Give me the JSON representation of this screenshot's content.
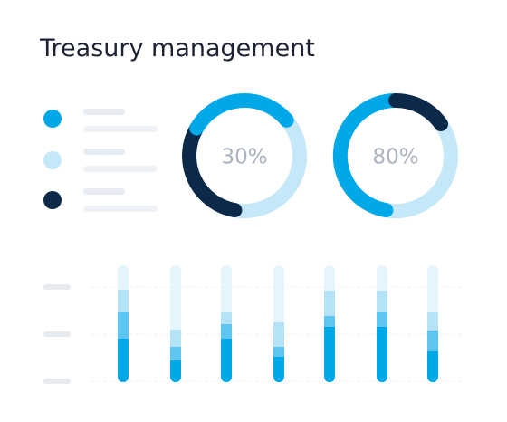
{
  "header": {
    "title": "Treasury management"
  },
  "donuts": [
    {
      "label": "30%"
    },
    {
      "label": "80%"
    }
  ]
}
